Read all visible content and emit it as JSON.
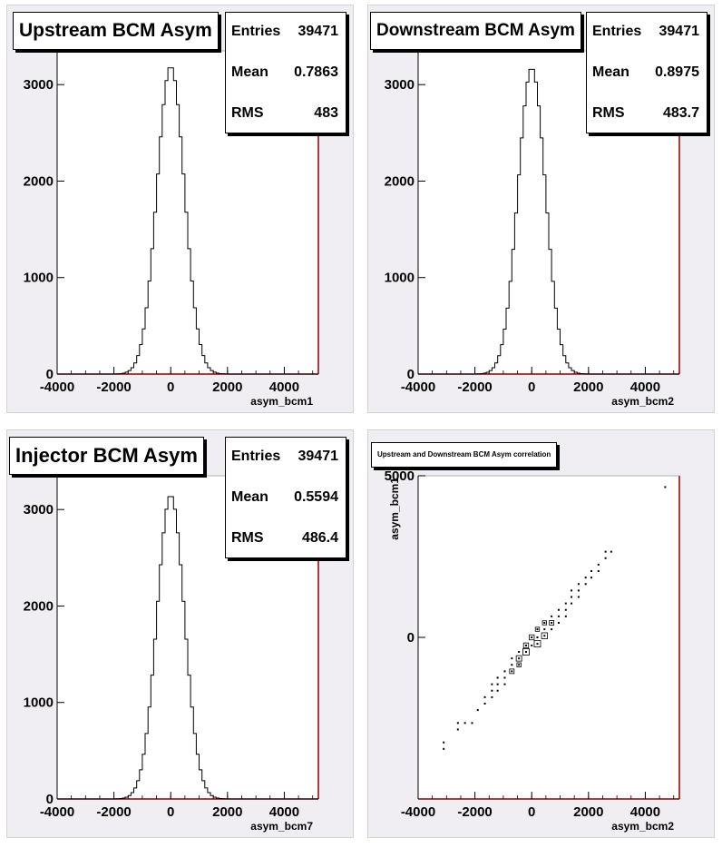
{
  "chart_data": [
    {
      "type": "histogram",
      "title": "Upstream BCM Asym",
      "xlabel": "asym_bcm1",
      "ylabel": "",
      "xlim": [
        -4000,
        5200
      ],
      "ylim": [
        0,
        3350
      ],
      "x_ticks": [
        -4000,
        -2000,
        0,
        2000,
        4000
      ],
      "y_ticks": [
        0,
        1000,
        2000,
        3000
      ],
      "stats": {
        "entries_label": "Entries",
        "entries": "39471",
        "mean_label": "Mean",
        "mean": "0.7863",
        "rms_label": "RMS",
        "rms": "483"
      },
      "peak": 3190
    },
    {
      "type": "histogram",
      "title": "Downstream BCM Asym",
      "xlabel": "asym_bcm2",
      "ylabel": "",
      "xlim": [
        -4000,
        5200
      ],
      "ylim": [
        0,
        3350
      ],
      "x_ticks": [
        -4000,
        -2000,
        0,
        2000,
        4000
      ],
      "y_ticks": [
        0,
        1000,
        2000,
        3000
      ],
      "stats": {
        "entries_label": "Entries",
        "entries": "39471",
        "mean_label": "Mean",
        "mean": "0.8975",
        "rms_label": "RMS",
        "rms": "483.7"
      },
      "peak": 3175
    },
    {
      "type": "histogram",
      "title": "Injector BCM Asym",
      "xlabel": "asym_bcm7",
      "ylabel": "",
      "xlim": [
        -4000,
        5200
      ],
      "ylim": [
        0,
        3350
      ],
      "x_ticks": [
        -4000,
        -2000,
        0,
        2000,
        4000
      ],
      "y_ticks": [
        0,
        1000,
        2000,
        3000
      ],
      "stats": {
        "entries_label": "Entries",
        "entries": "39471",
        "mean_label": "Mean",
        "mean": "0.5594",
        "rms_label": "RMS",
        "rms": "486.4"
      },
      "peak": 3150
    },
    {
      "type": "scatter",
      "title": "Upstream and Downstream BCM Asym correlation",
      "xlabel": "asym_bcm2",
      "ylabel": "asym_bcm1",
      "xlim": [
        -4000,
        5200
      ],
      "ylim": [
        -5000,
        5000
      ],
      "x_ticks": [
        -4000,
        -2000,
        0,
        2000,
        4000
      ],
      "y_ticks": [
        0,
        5000
      ],
      "points": [
        [
          -3100,
          -3250
        ],
        [
          -3100,
          -3450
        ],
        [
          -2600,
          -2650
        ],
        [
          -2600,
          -2850
        ],
        [
          -2350,
          -2650
        ],
        [
          -2100,
          -2650
        ],
        [
          -1900,
          -2250
        ],
        [
          -1650,
          -1850
        ],
        [
          -1650,
          -2050
        ],
        [
          -1400,
          -1450
        ],
        [
          -1400,
          -1650
        ],
        [
          -1400,
          -1850
        ],
        [
          -1200,
          -1250
        ],
        [
          -1200,
          -1450
        ],
        [
          -1200,
          -1650
        ],
        [
          -950,
          -1050
        ],
        [
          -950,
          -1250
        ],
        [
          -950,
          -1450
        ],
        [
          -700,
          -650
        ],
        [
          -700,
          -850
        ],
        [
          -700,
          -1050
        ],
        [
          -450,
          -450
        ],
        [
          -450,
          -650
        ],
        [
          -450,
          -850
        ],
        [
          -200,
          -250
        ],
        [
          -200,
          -450
        ],
        [
          0,
          0
        ],
        [
          0,
          -250
        ],
        [
          200,
          250
        ],
        [
          200,
          0
        ],
        [
          200,
          -200
        ],
        [
          450,
          450
        ],
        [
          450,
          250
        ],
        [
          450,
          50
        ],
        [
          700,
          650
        ],
        [
          700,
          450
        ],
        [
          700,
          250
        ],
        [
          950,
          850
        ],
        [
          950,
          650
        ],
        [
          950,
          450
        ],
        [
          1200,
          1050
        ],
        [
          1200,
          850
        ],
        [
          1200,
          650
        ],
        [
          1400,
          1450
        ],
        [
          1400,
          1250
        ],
        [
          1400,
          1050
        ],
        [
          1650,
          1650
        ],
        [
          1650,
          1450
        ],
        [
          1650,
          1250
        ],
        [
          1900,
          1850
        ],
        [
          1900,
          1650
        ],
        [
          2100,
          2050
        ],
        [
          2100,
          1850
        ],
        [
          2350,
          2250
        ],
        [
          2350,
          2050
        ],
        [
          2600,
          2650
        ],
        [
          2600,
          2450
        ],
        [
          2800,
          2650
        ],
        [
          4700,
          4650
        ]
      ],
      "boxes": [
        [
          -700,
          -1050,
          0.5
        ],
        [
          -450,
          -650,
          0.6
        ],
        [
          -450,
          -850,
          0.45
        ],
        [
          -200,
          -450,
          0.7
        ],
        [
          -200,
          -250,
          0.55
        ],
        [
          0,
          0,
          0.55
        ],
        [
          200,
          -200,
          0.7
        ],
        [
          200,
          250,
          0.45
        ],
        [
          450,
          50,
          0.65
        ],
        [
          450,
          450,
          0.45
        ],
        [
          700,
          450,
          0.5
        ]
      ]
    }
  ]
}
